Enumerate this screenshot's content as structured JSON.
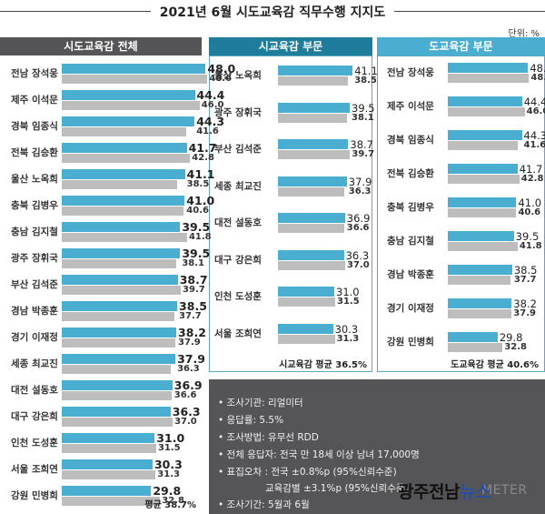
{
  "title": "2021년 6월 시도교육감 직무수행 지지도",
  "unit": "단위: %",
  "panels": {
    "all": "시도교육감 전체",
    "city": "시교육감 부문",
    "province": "도교육감 부문"
  },
  "chart_data": [
    {
      "type": "bar",
      "title": "시도교육감 전체",
      "ylim": [
        0,
        50
      ],
      "categories": [
        "전남 장석웅",
        "제주 이석문",
        "경북 임종식",
        "전북 김승환",
        "울산 노옥희",
        "충북 김병우",
        "충남 김지철",
        "광주 장휘국",
        "부산 김석준",
        "경남 박종훈",
        "경기 이재정",
        "세종 최교진",
        "대전 설동호",
        "대구 강은희",
        "인천 도성훈",
        "서울 조희연",
        "강원 민병희"
      ],
      "series": [
        {
          "values": [
            48.0,
            44.4,
            44.3,
            41.7,
            41.1,
            41.0,
            39.5,
            39.5,
            38.7,
            38.5,
            38.2,
            37.9,
            36.9,
            36.3,
            31.0,
            30.3,
            29.8
          ]
        },
        {
          "values": [
            48.6,
            46.0,
            41.6,
            42.8,
            38.5,
            40.6,
            41.8,
            38.1,
            39.7,
            37.7,
            37.9,
            36.3,
            36.6,
            37.0,
            31.5,
            31.3,
            32.8
          ]
        }
      ],
      "labels1": [
        "48.0",
        "44.4",
        "44.3",
        "41.7",
        "41.1",
        "41.0",
        "39.5",
        "39.5",
        "38.7",
        "38.5",
        "38.2",
        "37.9",
        "36.9",
        "36.3",
        "31.0",
        "30.3",
        "29.8"
      ],
      "labels2": [
        "48.6",
        "46.0",
        "41.6",
        "42.8",
        "38.5",
        "40.6",
        "41.8",
        "38.1",
        "39.7",
        "37.7",
        "37.9",
        "36.3",
        "36.6",
        "37.0",
        "31.5",
        "31.3",
        "32.8"
      ],
      "average_label": "평균 38.7%"
    },
    {
      "type": "bar",
      "title": "시교육감 부문",
      "ylim": [
        0,
        50
      ],
      "categories": [
        "울산 노옥희",
        "광주 장휘국",
        "부산 김석준",
        "세종 최교진",
        "대전 설동호",
        "대구 강은희",
        "인천 도성훈",
        "서울 조희연"
      ],
      "series": [
        {
          "values": [
            41.1,
            39.5,
            38.7,
            37.9,
            36.9,
            36.3,
            31.0,
            30.3
          ]
        },
        {
          "values": [
            38.5,
            38.1,
            39.7,
            36.3,
            36.6,
            37.0,
            31.5,
            31.3
          ]
        }
      ],
      "labels1": [
        "41.1",
        "39.5",
        "38.7",
        "37.9",
        "36.9",
        "36.3",
        "31.0",
        "30.3"
      ],
      "labels2": [
        "38.5",
        "38.1",
        "39.7",
        "36.3",
        "36.6",
        "37.0",
        "31.5",
        "31.3"
      ],
      "average_label": "시교육감 평균 36.5%"
    },
    {
      "type": "bar",
      "title": "도교육감 부문",
      "ylim": [
        0,
        50
      ],
      "categories": [
        "전남 장석웅",
        "제주 이석문",
        "경북 임종식",
        "전북 김승환",
        "충북 김병우",
        "충남 김지철",
        "경남 박종훈",
        "경기 이재정",
        "강원 민병희"
      ],
      "series": [
        {
          "values": [
            48.0,
            44.4,
            44.3,
            41.7,
            41.0,
            39.5,
            38.5,
            38.2,
            29.8
          ]
        },
        {
          "values": [
            48.6,
            46.0,
            41.6,
            42.8,
            40.6,
            41.8,
            37.7,
            37.9,
            32.8
          ]
        }
      ],
      "labels1": [
        "48.0",
        "44.4",
        "44.3",
        "41.7",
        "41.0",
        "39.5",
        "38.5",
        "38.2",
        "29.8"
      ],
      "labels2": [
        "48.6",
        "46.0",
        "41.6",
        "42.8",
        "40.6",
        "41.8",
        "37.7",
        "37.9",
        "32.8"
      ],
      "average_label": "도교육감 평균 40.6%"
    }
  ],
  "info": [
    "• 조사기관: 리얼미터",
    "• 응답률: 5.5%",
    "• 조사방법: 유무선 RDD",
    "• 전체 응답자: 전국 만 18세 이상 남녀 17,000명",
    "• 표집오차 : 전국 ±0.8%p (95%신뢰수준)",
    "교육감별 ±3.1%p (95%신뢰수준)",
    "• 조사기간: 5월과 6월"
  ],
  "logo": {
    "part1": "광주전남",
    "part2": "뉴스"
  },
  "watermark": "METER",
  "colors": {
    "bar_current": "#4aaed0",
    "bar_previous": "#bdbdbd",
    "header_dark": "#555557",
    "header_teal": "#1f7d9b",
    "header_light": "#4aaed0"
  }
}
